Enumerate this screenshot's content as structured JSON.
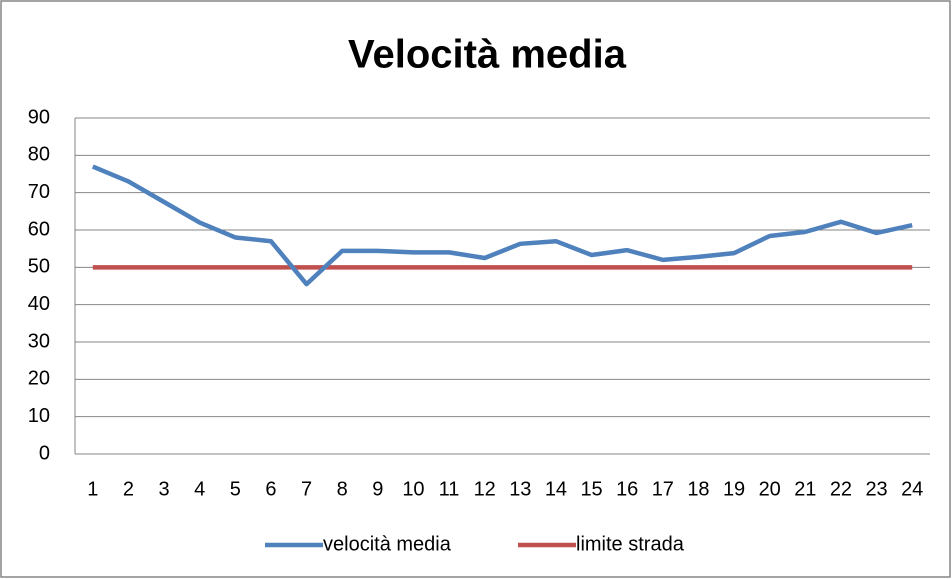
{
  "chart_data": {
    "type": "line",
    "title": "Velocità media",
    "categories": [
      "1",
      "2",
      "3",
      "4",
      "5",
      "6",
      "7",
      "8",
      "9",
      "10",
      "11",
      "12",
      "13",
      "14",
      "15",
      "16",
      "17",
      "18",
      "19",
      "20",
      "21",
      "22",
      "23",
      "24"
    ],
    "series": [
      {
        "name": "velocità media",
        "color": "#4f81bd",
        "values": [
          77,
          73,
          67.5,
          62,
          58,
          57,
          45.5,
          54.4,
          54.4,
          54,
          54,
          52.5,
          56.3,
          57,
          53.3,
          54.6,
          52,
          52.8,
          53.8,
          58.4,
          59.5,
          62.2,
          59.2,
          61.3
        ]
      },
      {
        "name": "limite strada",
        "color": "#c0504d",
        "values": [
          50,
          50,
          50,
          50,
          50,
          50,
          50,
          50,
          50,
          50,
          50,
          50,
          50,
          50,
          50,
          50,
          50,
          50,
          50,
          50,
          50,
          50,
          50,
          50
        ]
      }
    ],
    "ylim": [
      0,
      90
    ],
    "yticks": [
      0,
      10,
      20,
      30,
      40,
      50,
      60,
      70,
      80,
      90
    ],
    "grid": true,
    "legend": "bottom"
  }
}
